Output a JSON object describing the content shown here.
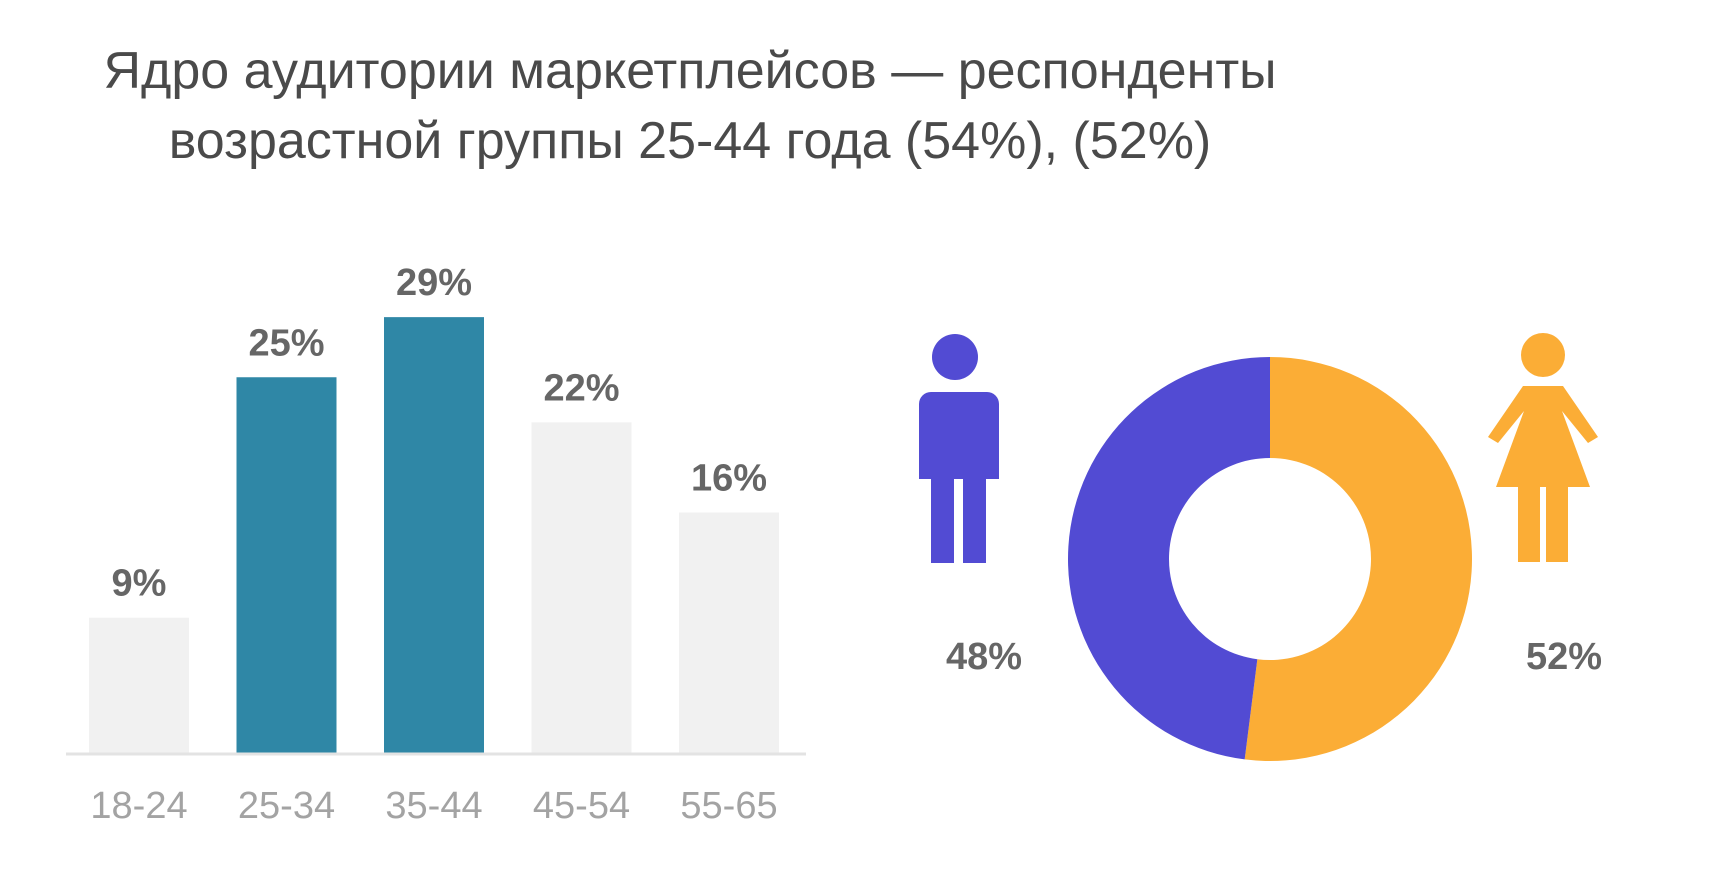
{
  "chart_data": [
    {
      "type": "bar",
      "title": "Ядро аудитории маркетплейсов — респонденты возрастной группы 25-44 года (54%), (52%)",
      "title_lines": [
        "Ядро аудитории маркетплейсов — респонденты",
        "возрастной группы 25-44 года (54%), (52%)"
      ],
      "categories": [
        "18-24",
        "25-34",
        "35-44",
        "45-54",
        "55-65"
      ],
      "values": [
        9,
        25,
        29,
        22,
        16
      ],
      "value_labels": [
        "9%",
        "25%",
        "29%",
        "22%",
        "16%"
      ],
      "highlighted": [
        false,
        true,
        true,
        false,
        false
      ],
      "ylim": [
        0,
        30
      ],
      "grid": false,
      "colors": {
        "highlight": "#2f87a6",
        "normal": "#f1f1f1",
        "baseline": "#e3e3e3"
      }
    },
    {
      "type": "pie",
      "donut": true,
      "slices": [
        {
          "value": 48,
          "label": "48%",
          "color": "#524bd3",
          "icon": "male-figure-icon"
        },
        {
          "value": 52,
          "label": "52%",
          "color": "#fbad36",
          "icon": "female-figure-icon"
        }
      ]
    }
  ]
}
